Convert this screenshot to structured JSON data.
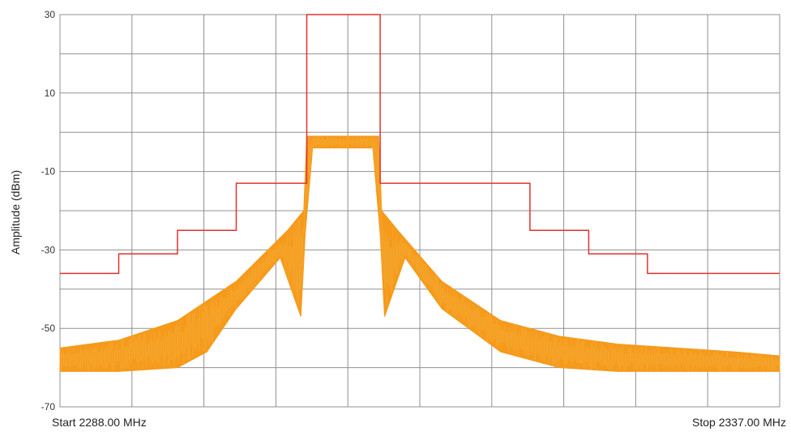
{
  "chart_data": {
    "type": "line",
    "ylabel": "Amplitude (dBm)",
    "xlabel": "",
    "start_label": "Start 2288.00 MHz",
    "stop_label": "Stop 2337.00 MHz",
    "xlim": [
      2288.0,
      2337.0
    ],
    "ylim": [
      -70,
      30
    ],
    "yticks": [
      30,
      10,
      -10,
      -30,
      -50,
      -70
    ],
    "grid": true,
    "colors": {
      "spectrum": "#f59a1b",
      "mask": "#e0322d",
      "grid": "#909090"
    },
    "series": [
      {
        "role": "mask",
        "x": [
          2288.0,
          2292.0,
          2292.0,
          2296.0,
          2296.0,
          2300.0,
          2300.0,
          2304.8,
          2304.8,
          2309.8,
          2309.8,
          2320.0,
          2320.0,
          2324.0,
          2324.0,
          2328.0,
          2328.0,
          2337.0
        ],
        "y": [
          -36,
          -36,
          -31,
          -31,
          -25,
          -25,
          -13,
          -13,
          30,
          30,
          -13,
          -13,
          -25,
          -25,
          -31,
          -31,
          -36,
          -36
        ]
      },
      {
        "role": "spectrum-upper",
        "x": [
          2288.0,
          2292.0,
          2296.0,
          2300.0,
          2303.5,
          2304.6,
          2304.8,
          2305.0,
          2309.5,
          2309.7,
          2309.9,
          2311.0,
          2314.0,
          2318.0,
          2322.0,
          2326.0,
          2330.0,
          2334.0,
          2337.0
        ],
        "y": [
          -55,
          -53,
          -48,
          -38,
          -25,
          -20,
          -1,
          -1,
          -1,
          -1,
          -20,
          -25,
          -38,
          -48,
          -52,
          -54,
          -55,
          -56,
          -57
        ]
      },
      {
        "role": "spectrum-lower",
        "x": [
          2288.0,
          2292.0,
          2296.0,
          2298.0,
          2300.0,
          2303.0,
          2304.4,
          2304.7,
          2305.2,
          2309.3,
          2309.8,
          2310.1,
          2311.5,
          2314.0,
          2318.0,
          2322.0,
          2326.0,
          2330.0,
          2334.0,
          2337.0
        ],
        "y": [
          -61,
          -61,
          -60,
          -56,
          -45,
          -32,
          -47,
          -26,
          -4,
          -4,
          -26,
          -47,
          -32,
          -45,
          -56,
          -60,
          -61,
          -61,
          -61,
          -61
        ]
      }
    ]
  }
}
